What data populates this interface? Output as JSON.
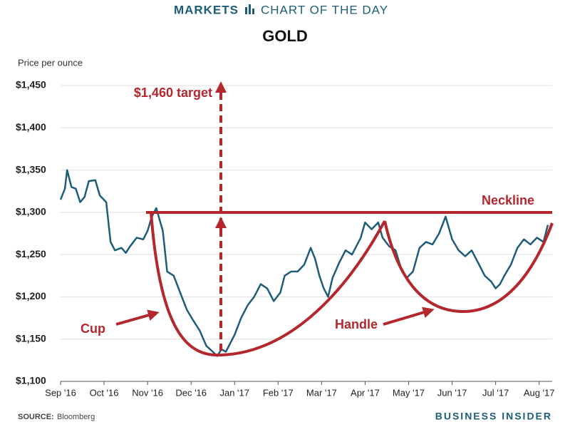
{
  "chart_data": {
    "type": "line",
    "header_left": "MARKETS",
    "header_right": "CHART OF THE DAY",
    "title": "GOLD",
    "y_label": "Price per ounce",
    "source_label": "SOURCE:",
    "source": "Bloomberg",
    "brand": "BUSINESS INSIDER",
    "annotations": [
      "$1,460 target",
      "Neckline",
      "Cup",
      "Handle"
    ],
    "color": "#1d5d78",
    "grid": true,
    "ylim": [
      1100,
      1450
    ],
    "yticks": [
      {
        "value": 1100,
        "label": "$1,100"
      },
      {
        "value": 1150,
        "label": "$1,150"
      },
      {
        "value": 1200,
        "label": "$1,200"
      },
      {
        "value": 1250,
        "label": "$1,250"
      },
      {
        "value": 1300,
        "label": "$1,300"
      },
      {
        "value": 1350,
        "label": "$1,350"
      },
      {
        "value": 1400,
        "label": "$1,400"
      },
      {
        "value": 1450,
        "label": "$1,450"
      }
    ],
    "xlim": [
      0,
      11.3
    ],
    "xticks": [
      {
        "value": 0,
        "label": "Sep '16"
      },
      {
        "value": 1,
        "label": "Oct '16"
      },
      {
        "value": 2,
        "label": "Nov '16"
      },
      {
        "value": 3,
        "label": "Dec '16"
      },
      {
        "value": 4,
        "label": "Jan '17"
      },
      {
        "value": 5,
        "label": "Feb '17"
      },
      {
        "value": 6,
        "label": "Mar '17"
      },
      {
        "value": 7,
        "label": "Apr '17"
      },
      {
        "value": 8,
        "label": "May '17"
      },
      {
        "value": 9,
        "label": "Jun '17"
      },
      {
        "value": 10,
        "label": "Jul '17"
      },
      {
        "value": 11,
        "label": "Aug '17"
      }
    ],
    "x": [
      0,
      0.1,
      0.15,
      0.25,
      0.35,
      0.45,
      0.55,
      0.65,
      0.8,
      0.9,
      1.05,
      1.15,
      1.25,
      1.4,
      1.5,
      1.6,
      1.75,
      1.9,
      2.0,
      2.1,
      2.2,
      2.35,
      2.45,
      2.6,
      2.75,
      2.9,
      3.05,
      3.2,
      3.35,
      3.5,
      3.6,
      3.7,
      3.8,
      3.9,
      4.0,
      4.15,
      4.3,
      4.45,
      4.6,
      4.75,
      4.9,
      5.05,
      5.15,
      5.3,
      5.45,
      5.6,
      5.75,
      5.85,
      5.95,
      6.05,
      6.15,
      6.25,
      6.4,
      6.55,
      6.7,
      6.8,
      6.9,
      7.0,
      7.15,
      7.3,
      7.4,
      7.55,
      7.7,
      7.85,
      7.95,
      8.1,
      8.25,
      8.4,
      8.55,
      8.7,
      8.85,
      9.0,
      9.15,
      9.3,
      9.45,
      9.6,
      9.75,
      9.9,
      10.0,
      10.1,
      10.2,
      10.35,
      10.5,
      10.65,
      10.8,
      10.95,
      11.1,
      11.2
    ],
    "values": [
      1315,
      1328,
      1350,
      1330,
      1328,
      1312,
      1318,
      1337,
      1338,
      1320,
      1312,
      1265,
      1255,
      1258,
      1252,
      1260,
      1270,
      1268,
      1278,
      1295,
      1305,
      1278,
      1230,
      1225,
      1205,
      1185,
      1172,
      1160,
      1142,
      1135,
      1130,
      1138,
      1135,
      1145,
      1155,
      1175,
      1190,
      1200,
      1215,
      1210,
      1195,
      1205,
      1225,
      1230,
      1230,
      1238,
      1258,
      1245,
      1225,
      1210,
      1200,
      1222,
      1240,
      1255,
      1250,
      1260,
      1270,
      1288,
      1280,
      1288,
      1270,
      1260,
      1255,
      1230,
      1222,
      1230,
      1258,
      1265,
      1262,
      1275,
      1295,
      1268,
      1255,
      1248,
      1255,
      1240,
      1225,
      1218,
      1210,
      1215,
      1225,
      1238,
      1258,
      1268,
      1262,
      1270,
      1265,
      1285
    ]
  }
}
